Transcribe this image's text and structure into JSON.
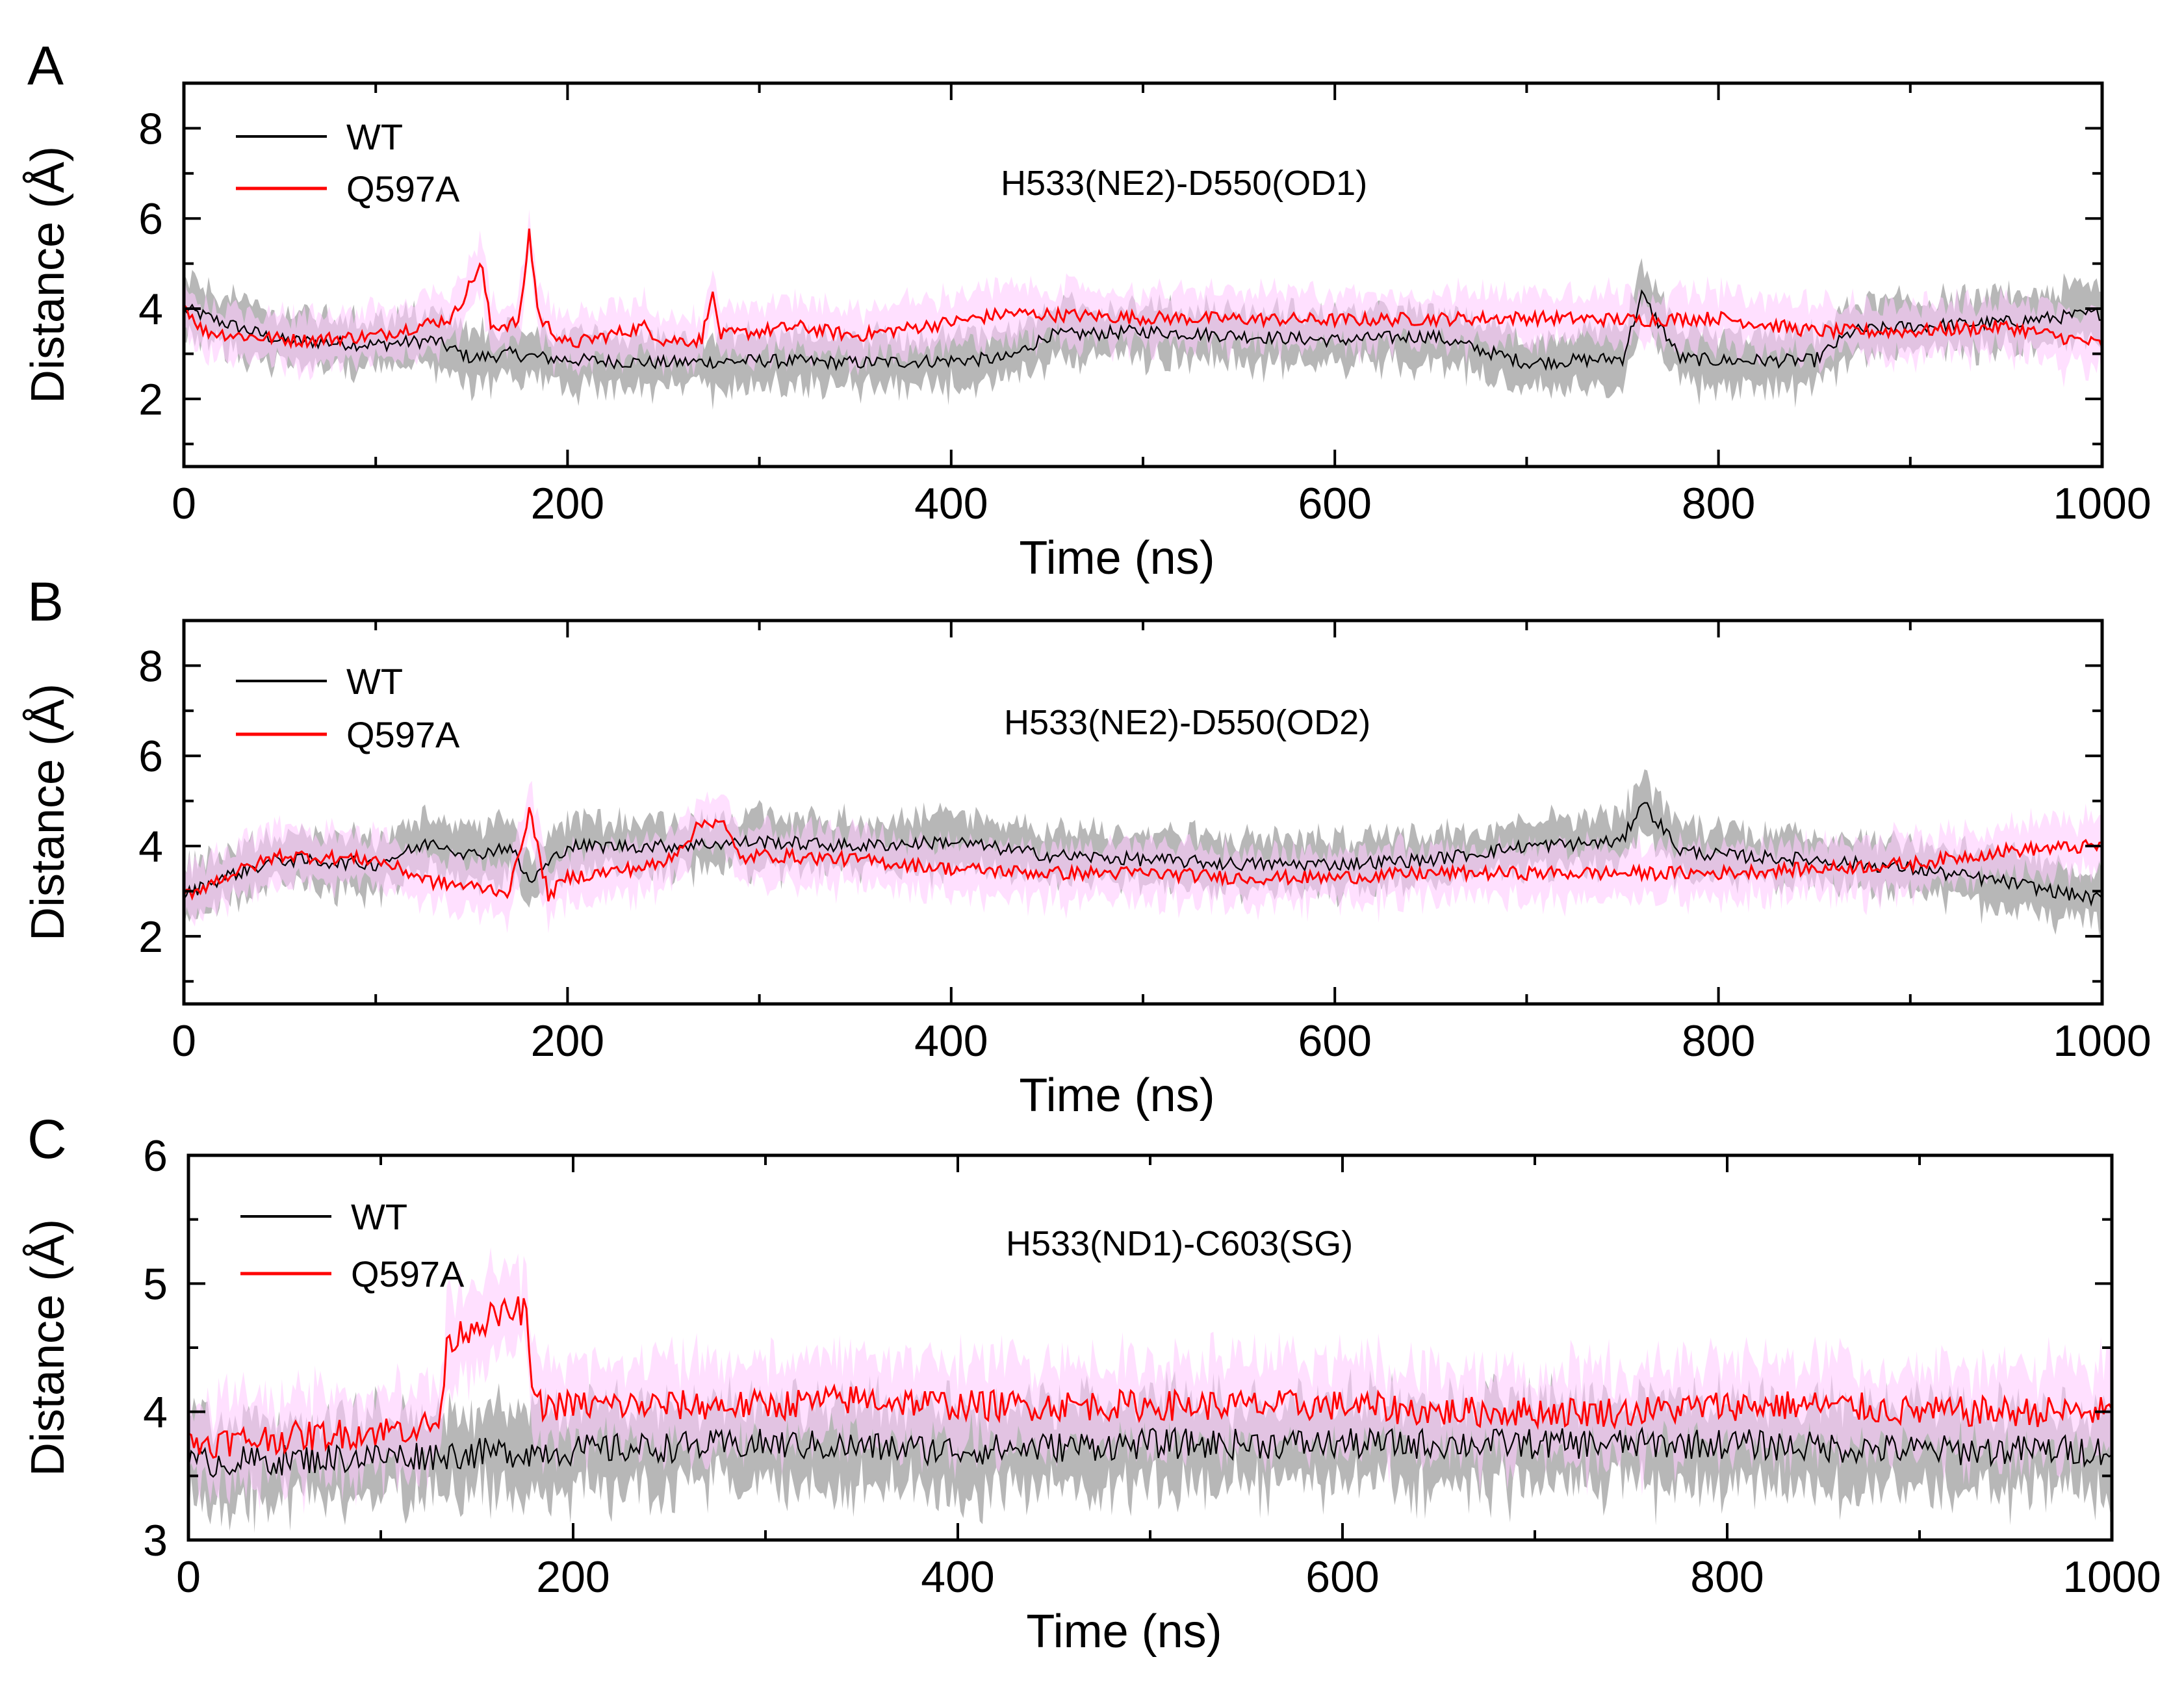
{
  "chart_data": [
    {
      "type": "line",
      "panel_label": "A",
      "annotation": "H533(NE2)-D550(OD1)",
      "xlabel": "Time (ns)",
      "ylabel": "Distance (Å)",
      "xlim": [
        0,
        1000
      ],
      "ylim": [
        0.5,
        9
      ],
      "xticks": [
        0,
        200,
        400,
        600,
        800,
        1000
      ],
      "xtick_labels": [
        "0",
        "200",
        "400",
        "600",
        "800",
        "1000"
      ],
      "yticks": [
        2,
        4,
        6,
        8
      ],
      "ytick_labels": [
        "2",
        "4",
        "6",
        "8"
      ],
      "legend": [
        "WT",
        "Q597A"
      ],
      "colors": {
        "WT": "#000000",
        "Q597A": "#ff0000",
        "WT_band": "#b3b3b3",
        "Q597A_band": "#ffccff"
      },
      "series": [
        {
          "name": "WT",
          "x": [
            0,
            20,
            50,
            100,
            130,
            150,
            170,
            190,
            210,
            250,
            300,
            350,
            400,
            430,
            450,
            500,
            550,
            600,
            650,
            700,
            750,
            760,
            780,
            800,
            850,
            870,
            900,
            950,
            1000
          ],
          "values": [
            4.0,
            3.7,
            3.3,
            3.2,
            3.3,
            2.9,
            3.0,
            2.9,
            2.85,
            2.8,
            2.85,
            2.8,
            2.85,
            2.9,
            3.4,
            3.5,
            3.4,
            3.3,
            3.4,
            2.8,
            2.9,
            4.3,
            2.9,
            2.85,
            2.85,
            3.5,
            3.6,
            3.7,
            3.9
          ]
        },
        {
          "name": "Q597A",
          "x": [
            0,
            10,
            30,
            60,
            100,
            140,
            155,
            160,
            175,
            180,
            185,
            200,
            240,
            250,
            270,
            275,
            280,
            320,
            350,
            400,
            430,
            500,
            600,
            700,
            760,
            800,
            850,
            900,
            950,
            1000
          ],
          "values": [
            4.1,
            3.5,
            3.4,
            3.3,
            3.4,
            3.8,
            5.0,
            3.6,
            3.7,
            5.7,
            3.8,
            3.2,
            3.6,
            3.3,
            3.3,
            4.4,
            3.4,
            3.6,
            3.4,
            3.7,
            3.9,
            3.8,
            3.75,
            3.8,
            3.75,
            3.8,
            3.5,
            3.5,
            3.6,
            3.2
          ]
        }
      ]
    },
    {
      "type": "line",
      "panel_label": "B",
      "annotation": "H533(NE2)-D550(OD2)",
      "xlabel": "Time (ns)",
      "ylabel": "Distance (Å)",
      "xlim": [
        0,
        1000
      ],
      "ylim": [
        0.5,
        9
      ],
      "xticks": [
        0,
        200,
        400,
        600,
        800,
        1000
      ],
      "xtick_labels": [
        "0",
        "200",
        "400",
        "600",
        "800",
        "1000"
      ],
      "yticks": [
        2,
        4,
        6,
        8
      ],
      "ytick_labels": [
        "2",
        "4",
        "6",
        "8"
      ],
      "legend": [
        "WT",
        "Q597A"
      ],
      "colors": {
        "WT": "#000000",
        "Q597A": "#ff0000",
        "WT_band": "#b3b3b3",
        "Q597A_band": "#ffccff"
      },
      "series": [
        {
          "name": "WT",
          "x": [
            0,
            20,
            50,
            100,
            130,
            150,
            170,
            180,
            200,
            250,
            300,
            350,
            400,
            450,
            500,
            550,
            600,
            650,
            700,
            750,
            760,
            780,
            800,
            850,
            900,
            950,
            1000
          ],
          "values": [
            2.9,
            3.3,
            3.7,
            3.6,
            4.1,
            3.8,
            4.0,
            3.2,
            4.0,
            4.0,
            4.1,
            4.0,
            4.1,
            3.8,
            3.7,
            3.6,
            3.6,
            3.7,
            4.0,
            4.1,
            5.0,
            3.9,
            3.8,
            3.7,
            3.5,
            3.2,
            2.8
          ]
        },
        {
          "name": "Q597A",
          "x": [
            0,
            20,
            50,
            100,
            130,
            150,
            170,
            180,
            190,
            200,
            250,
            270,
            280,
            290,
            300,
            350,
            400,
            450,
            500,
            550,
            600,
            650,
            700,
            750,
            800,
            850,
            900,
            950,
            1000
          ],
          "values": [
            2.9,
            3.3,
            3.8,
            3.7,
            3.2,
            3.1,
            3.0,
            4.8,
            2.9,
            3.3,
            3.6,
            4.5,
            4.6,
            3.7,
            3.8,
            3.7,
            3.5,
            3.4,
            3.4,
            3.3,
            3.3,
            3.4,
            3.4,
            3.4,
            3.4,
            3.5,
            3.6,
            3.9,
            4.0
          ]
        }
      ]
    },
    {
      "type": "line",
      "panel_label": "C",
      "annotation": "H533(ND1)-C603(SG)",
      "xlabel": "Time (ns)",
      "ylabel": "Distance (Å)",
      "xlim": [
        0,
        1000
      ],
      "ylim": [
        3,
        6
      ],
      "xticks": [
        0,
        200,
        400,
        600,
        800,
        1000
      ],
      "xtick_labels": [
        "0",
        "200",
        "400",
        "600",
        "800",
        "1000"
      ],
      "yticks": [
        3,
        4,
        5,
        6
      ],
      "ytick_labels": [
        "3",
        "4",
        "5",
        "6"
      ],
      "legend": [
        "WT",
        "Q597A"
      ],
      "colors": {
        "WT": "#000000",
        "Q597A": "#ff0000",
        "WT_band": "#b3b3b3",
        "Q597A_band": "#ffccff"
      },
      "series": [
        {
          "name": "WT",
          "x": [
            0,
            100,
            200,
            300,
            400,
            500,
            600,
            700,
            800,
            900,
            1000
          ],
          "values": [
            3.6,
            3.65,
            3.7,
            3.75,
            3.7,
            3.75,
            3.75,
            3.75,
            3.75,
            3.7,
            3.7
          ]
        },
        {
          "name": "Q597A",
          "x": [
            0,
            50,
            100,
            130,
            135,
            150,
            175,
            180,
            200,
            250,
            300,
            350,
            400,
            450,
            500,
            550,
            600,
            650,
            700,
            750,
            800,
            850,
            900,
            950,
            1000
          ],
          "values": [
            3.75,
            3.8,
            3.85,
            3.9,
            4.55,
            4.7,
            4.8,
            4.05,
            4.05,
            4.05,
            4.05,
            4.1,
            4.05,
            4.05,
            4.05,
            4.05,
            4.05,
            4.0,
            4.0,
            4.0,
            4.05,
            4.05,
            4.0,
            4.0,
            4.0
          ]
        }
      ]
    }
  ]
}
